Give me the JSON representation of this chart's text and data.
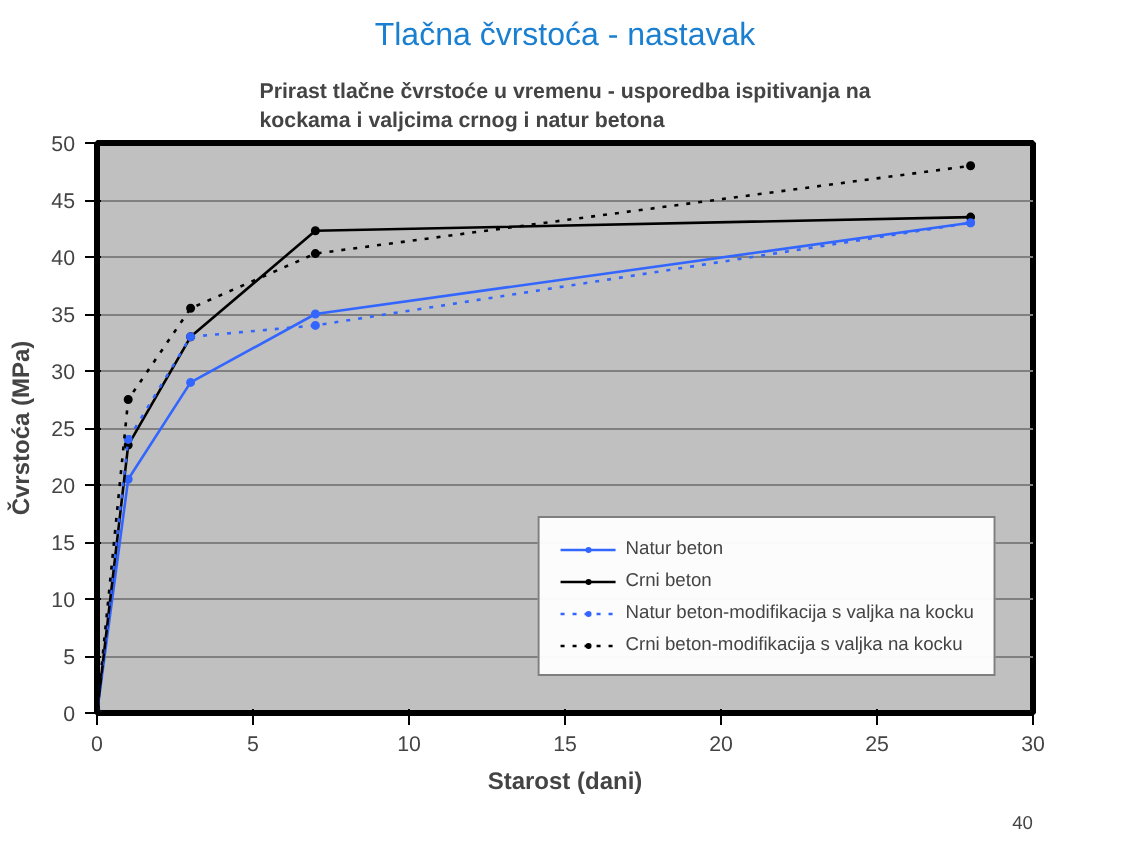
{
  "chart_data": {
    "type": "line",
    "title": "Tlačna čvrstoća - nastavak",
    "subtitle": "Prirast tlačne čvrstoće u vremenu - usporedba ispitivanja na\nkockama i valjcima crnog i natur betona",
    "xlabel": "Starost (dani)",
    "ylabel": "Čvrstoća (MPa)",
    "annotations": [
      "40"
    ],
    "x": [
      0,
      1,
      3,
      7,
      28
    ],
    "series": [
      {
        "name": "Natur beton",
        "color": "#3366ff",
        "values": [
          0,
          20.5,
          29,
          35,
          43
        ],
        "line_style": "solid"
      },
      {
        "name": "Crni beton",
        "color": "#000000",
        "values": [
          0,
          23.5,
          33,
          42.3,
          43.5
        ],
        "line_style": "solid"
      },
      {
        "name": "Natur beton-modifikacija s valjka na kocku",
        "color": "#3366ff",
        "values": [
          0,
          24,
          33,
          34,
          43
        ],
        "line_style": "dotted"
      },
      {
        "name": "Crni beton-modifikacija s valjka na kocku",
        "color": "#000000",
        "values": [
          0,
          27.5,
          35.5,
          40.3,
          48
        ],
        "line_style": "dotted"
      }
    ],
    "xlim": [
      0,
      30
    ],
    "xticks": [
      0,
      5,
      10,
      15,
      20,
      25,
      30
    ],
    "ylim": [
      0,
      50
    ],
    "yticks": [
      0,
      5,
      10,
      15,
      20,
      25,
      30,
      35,
      40,
      45,
      50
    ],
    "grid": "y",
    "legend": "bottom right",
    "marker": "circle"
  }
}
